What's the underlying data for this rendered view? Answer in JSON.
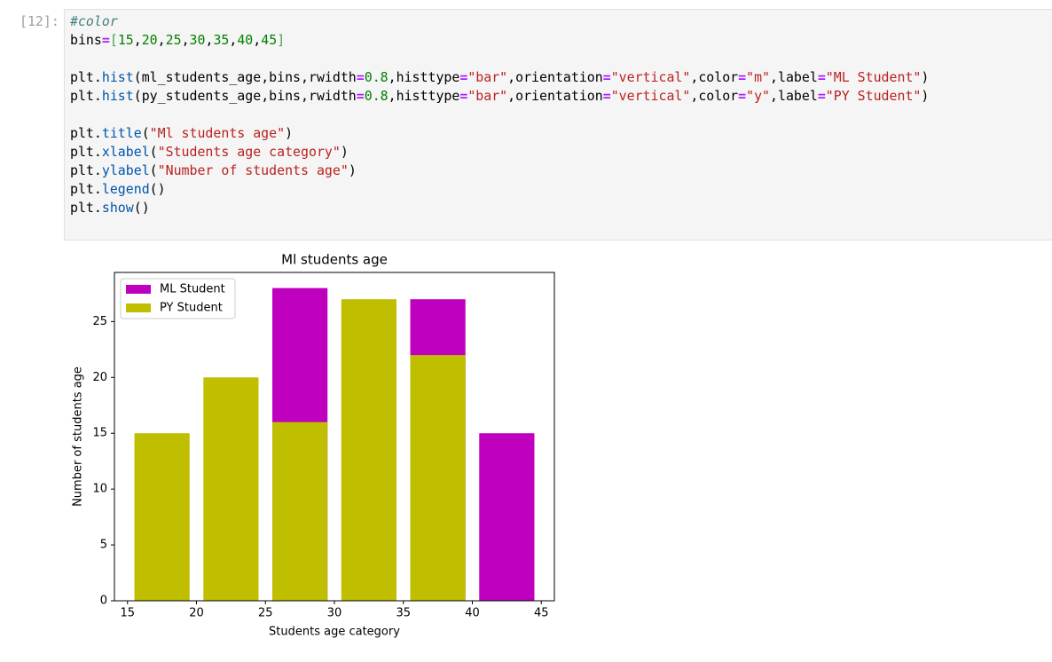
{
  "cell": {
    "prompt": "[12]:",
    "code": [
      [
        "#color",
        "bins=[15,20,25,30,35,40,45]"
      ],
      [
        "plt.hist(ml_students_age,bins,rwidth=0.8,histtype=\"bar\",orientation=\"vertical\",color=\"m\",label=\"ML Student\")",
        "plt.hist(py_students_age,bins,rwidth=0.8,histtype=\"bar\",orientation=\"vertical\",color=\"y\",label=\"PY Student\")"
      ],
      [
        "plt.title(\"Ml students age\")",
        "plt.xlabel(\"Students age category\")",
        "plt.ylabel(\"Number of students age\")",
        "plt.legend()",
        "plt.show()"
      ]
    ]
  },
  "chart_data": {
    "type": "histogram",
    "title": "Ml students age",
    "x_label": "Students age category",
    "y_label": "Number of students age",
    "bins": [
      15,
      20,
      25,
      30,
      35,
      40,
      45
    ],
    "rwidth": 0.8,
    "series": [
      {
        "name": "ML Student",
        "color": "#bf00bf",
        "values": [
          null,
          null,
          28,
          null,
          27,
          15
        ]
      },
      {
        "name": "PY Student",
        "color": "#bfbf00",
        "values": [
          15,
          20,
          16,
          27,
          22,
          0
        ]
      }
    ],
    "xlim": [
      14.05,
      45.95
    ],
    "ylim": [
      0,
      29.4
    ],
    "xticks": [
      15,
      20,
      25,
      30,
      35,
      40,
      45
    ],
    "yticks": [
      0,
      5,
      10,
      15,
      20,
      25
    ],
    "legend": "upper left"
  }
}
